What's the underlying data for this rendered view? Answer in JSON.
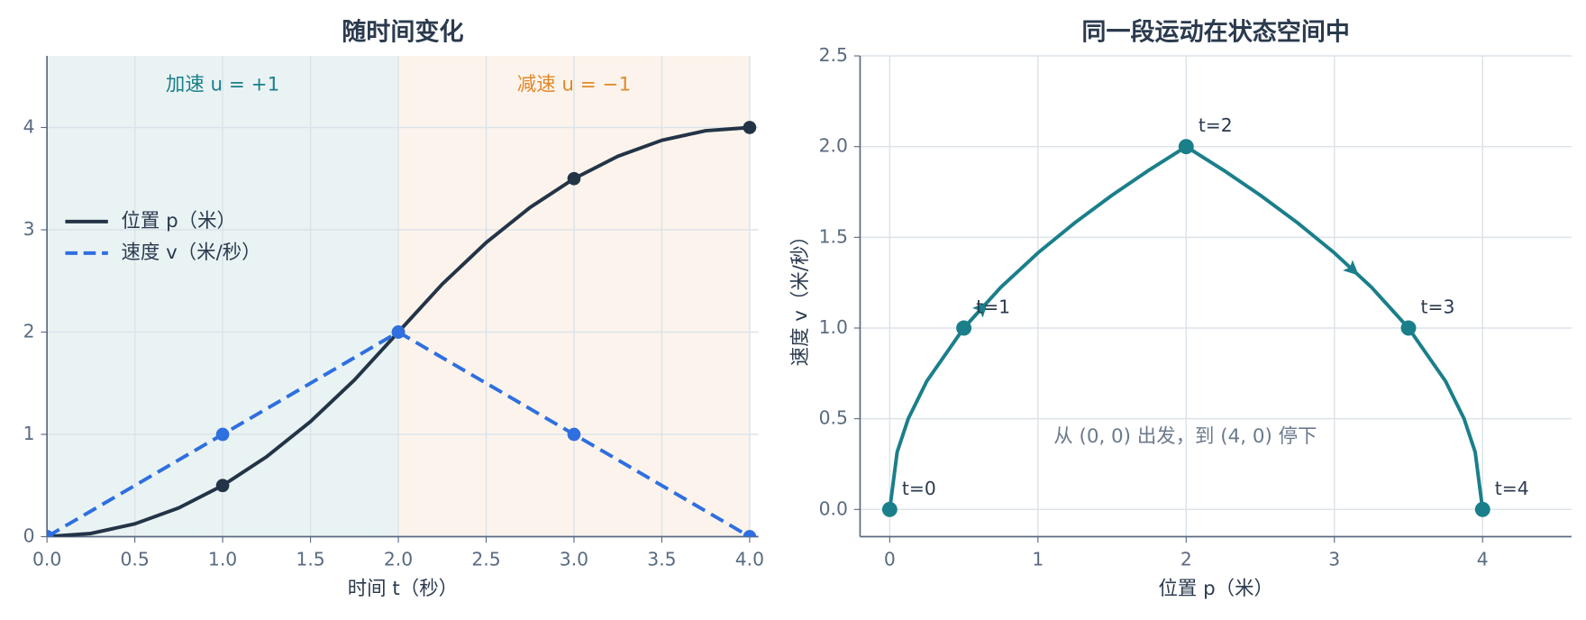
{
  "chart_data": [
    {
      "type": "line",
      "title": "随时间变化",
      "x_label": "时间 t（秒）",
      "xlim": [
        0,
        4.05
      ],
      "ylim": [
        0,
        4.7
      ],
      "grid": true,
      "legend": "center left",
      "xticks": [
        {
          "value": 0,
          "label": "0.0"
        },
        {
          "value": 0.5,
          "label": "0.5"
        },
        {
          "value": 1,
          "label": "1.0"
        },
        {
          "value": 1.5,
          "label": "1.5"
        },
        {
          "value": 2,
          "label": "2.0"
        },
        {
          "value": 2.5,
          "label": "2.5"
        },
        {
          "value": 3,
          "label": "3.0"
        },
        {
          "value": 3.5,
          "label": "3.5"
        },
        {
          "value": 4,
          "label": "4.0"
        }
      ],
      "yticks": [
        0,
        1,
        2,
        3,
        4
      ],
      "regions": [
        {
          "label": "加速 u = +1",
          "color": "#1a7f8a",
          "xrange": [
            0,
            2
          ]
        },
        {
          "label": "减速 u = −1",
          "color": "#e0892a",
          "xrange": [
            2,
            4
          ]
        }
      ],
      "series": [
        {
          "name": "位置 p（米）",
          "color": "#243447",
          "style": "solid",
          "markers": true,
          "x": [
            0,
            0.25,
            0.5,
            0.75,
            1,
            1.25,
            1.5,
            1.75,
            2,
            2.25,
            2.5,
            2.75,
            3,
            3.25,
            3.5,
            3.75,
            4
          ],
          "values": [
            0,
            0.03125,
            0.125,
            0.28125,
            0.5,
            0.78125,
            1.125,
            1.53125,
            2,
            2.46875,
            2.875,
            3.21875,
            3.5,
            3.71875,
            3.875,
            3.96875,
            4
          ]
        },
        {
          "name": "速度 v（米/秒）",
          "color": "#2f6fdf",
          "style": "dashed",
          "markers": true,
          "x": [
            0,
            1,
            2,
            3,
            4
          ],
          "values": [
            0,
            1,
            2,
            1,
            0
          ]
        }
      ]
    },
    {
      "type": "line",
      "title": "同一段运动在状态空间中",
      "x_label": "位置 p（米）",
      "y_label": "速度 v（米/秒）",
      "xlim": [
        -0.2,
        4.6
      ],
      "ylim": [
        -0.15,
        2.5
      ],
      "grid": true,
      "xticks": [
        0,
        1,
        2,
        3,
        4
      ],
      "yticks": [
        {
          "value": 0,
          "label": "0.0"
        },
        {
          "value": 0.5,
          "label": "0.5"
        },
        {
          "value": 1,
          "label": "1.0"
        },
        {
          "value": 1.5,
          "label": "1.5"
        },
        {
          "value": 2,
          "label": "2.0"
        },
        {
          "value": 2.5,
          "label": "2.5"
        }
      ],
      "annotation": "从 (0, 0) 出发，到 (4, 0) 停下",
      "series": [
        {
          "color": "#1a7f8a",
          "style": "solid",
          "arrows": true,
          "x": [
            0,
            0.05,
            0.125,
            0.25,
            0.5,
            0.75,
            1,
            1.25,
            1.5,
            1.75,
            2,
            2.25,
            2.5,
            2.75,
            3,
            3.25,
            3.5,
            3.75,
            3.875,
            3.95,
            4
          ],
          "values": [
            0,
            0.316,
            0.5,
            0.707,
            1,
            1.225,
            1.414,
            1.581,
            1.732,
            1.871,
            2,
            1.871,
            1.732,
            1.581,
            1.414,
            1.225,
            1,
            0.707,
            0.5,
            0.316,
            0
          ]
        }
      ],
      "points": [
        {
          "x": 0,
          "y": 0,
          "label": "t=0"
        },
        {
          "x": 0.5,
          "y": 1,
          "label": "t=1"
        },
        {
          "x": 2,
          "y": 2,
          "label": "t=2"
        },
        {
          "x": 3.5,
          "y": 1,
          "label": "t=3"
        },
        {
          "x": 4,
          "y": 0,
          "label": "t=4"
        }
      ]
    }
  ]
}
